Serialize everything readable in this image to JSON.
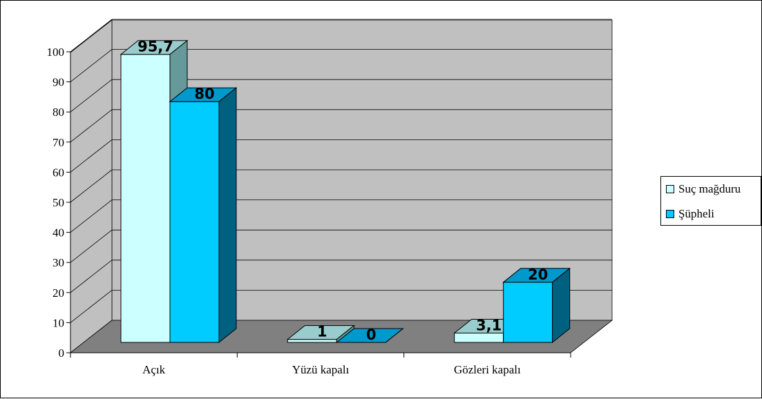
{
  "chart_data": {
    "type": "bar",
    "categories": [
      "Açık",
      "Yüzü kapalı",
      "Gözleri kapalı"
    ],
    "series": [
      {
        "name": "Suç mağduru",
        "values": [
          95.7,
          1,
          3.1
        ],
        "labels": [
          "95,7",
          "1",
          "3,1"
        ],
        "color": "#ccffff"
      },
      {
        "name": "Şüpheli",
        "values": [
          80,
          0,
          20
        ],
        "labels": [
          "80",
          "0",
          "20"
        ],
        "color": "#00ccff"
      }
    ],
    "ylim": [
      0,
      100
    ],
    "yticks": [
      "0",
      "10",
      "20",
      "30",
      "40",
      "50",
      "60",
      "70",
      "80",
      "90",
      "100"
    ],
    "grid": true,
    "three_d": true,
    "legend_position": "right",
    "colors": {
      "wall": "#c0c0c0",
      "floor": "#808080",
      "series1_top": "#99cccc",
      "series1_side": "#669999",
      "series2_top": "#0099cc",
      "series2_side": "#006080"
    }
  }
}
